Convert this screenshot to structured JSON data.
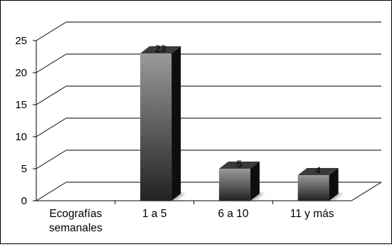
{
  "chart_data": {
    "type": "bar",
    "style": "3d-column",
    "categories": [
      "Ecografías semanales",
      "1 a 5",
      "6 a 10",
      "11 y más"
    ],
    "category_lines": [
      [
        "Ecografías",
        "semanales"
      ],
      [
        "1 a 5"
      ],
      [
        "6 a 10"
      ],
      [
        "11 y más"
      ]
    ],
    "values": [
      null,
      23,
      5,
      4
    ],
    "data_labels": [
      "",
      "23",
      "5",
      "4"
    ],
    "y_ticks": [
      "0",
      "5",
      "10",
      "15",
      "20",
      "25"
    ],
    "ylim": [
      0,
      25
    ],
    "title": "",
    "xlabel": "",
    "ylabel": "",
    "grid": true,
    "legend": "none",
    "colors": {
      "bar_light": "#9a9a9a",
      "bar_dark": "#222222",
      "bar_top": "#3a3a3a",
      "bar_side": "#0e0e0e",
      "grid": "#000000"
    }
  }
}
